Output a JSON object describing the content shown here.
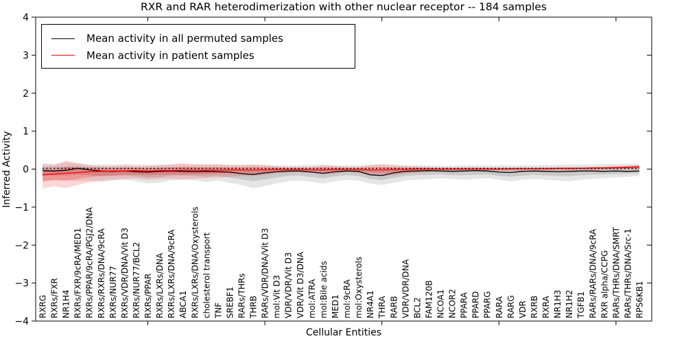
{
  "title": "RXR and RAR heterodimerization with other nuclear receptor -- 184 samples",
  "axes": {
    "ylabel": "Inferred Activity",
    "xlabel": "Cellular Entities"
  },
  "legend": {
    "entries": [
      {
        "label": "Mean activity in all permuted samples",
        "color": "#000000"
      },
      {
        "label": "Mean activity in patient samples",
        "color": "#ff0000"
      }
    ],
    "position": "upper left"
  },
  "colors": {
    "permuted_line": "#000000",
    "patient_line": "#ff0000",
    "baseline_dotted": "#000000",
    "gray_band_outer": "rgba(0,0,0,0.10)",
    "gray_band_inner": "rgba(0,0,0,0.12)",
    "red_band_outer": "rgba(255,0,0,0.16)",
    "red_band_inner": "rgba(255,0,0,0.22)",
    "spine": "#000000"
  },
  "chart_data": {
    "type": "line",
    "title": "RXR and RAR heterodimerization with other nuclear receptor -- 184 samples",
    "xlabel": "Cellular Entities",
    "ylabel": "Inferred Activity",
    "ylim": [
      -4,
      4
    ],
    "yticks": [
      4,
      3,
      2,
      1,
      0,
      -1,
      -2,
      -3,
      -4
    ],
    "ytick_labels": [
      "4",
      "3",
      "2",
      "1",
      "0",
      "−1",
      "−2",
      "−3",
      "−4"
    ],
    "grid": false,
    "legend_position": "upper left",
    "major_xtick_indices": [
      9,
      19,
      29,
      39,
      49
    ],
    "categories": [
      "RXRG",
      "RXRs/FXR",
      "NR1H4",
      "RXRs/FXR/9cRA/MED1",
      "RXRs/PPAR/9cRA/PGJ2/DNA",
      "RXRs/RXRs/DNA/9cRA",
      "RXRs/NUR77",
      "RXRs/VDR/DNA/Vit D3",
      "RXRs/NUR77/BCL2",
      "RXRs/PPAR",
      "RXRs/LXRs/DNA",
      "RXRs/LXRs/DNA/9cRA",
      "ABCA1",
      "RXRs/LXRs/DNA/Oxysterols",
      "cholesterol transport",
      "TNF",
      "SREBF1",
      "RARs/THRs",
      "THRB",
      "RARs/VDR/DNA/Vit D3",
      "mol:Vit D3",
      "VDR/VDR/Vit D3",
      "VDR/Vit D3/DNA",
      "mol:ATRA",
      "mol:Bile acids",
      "MED1",
      "mol:9cRA",
      "mol:Oxysterols",
      "NR4A1",
      "THRA",
      "RARB",
      "VDR/VDR/DNA",
      "BCL2",
      "FAM120B",
      "NCOA1",
      "NCOR2",
      "PPARA",
      "PPARD",
      "PPARG",
      "RARA",
      "RARG",
      "VDR",
      "RXRB",
      "RXRA",
      "NR1H3",
      "NR1H2",
      "TGFB1",
      "RARs/RARs/DNA/9cRA",
      "RXR alpha/CCPG",
      "RARs/THRs/DNA/SMRT",
      "RARs/THRs/DNA/Src-1",
      "RPS6KB1"
    ],
    "series": [
      {
        "name": "Mean activity in all permuted samples",
        "color": "#000000",
        "style": "solid",
        "values": [
          -0.04,
          -0.05,
          -0.03,
          0.02,
          -0.02,
          -0.05,
          -0.06,
          -0.05,
          -0.07,
          -0.08,
          -0.06,
          -0.05,
          -0.06,
          -0.07,
          -0.06,
          -0.07,
          -0.08,
          -0.12,
          -0.14,
          -0.1,
          -0.07,
          -0.05,
          -0.05,
          -0.08,
          -0.11,
          -0.07,
          -0.05,
          -0.06,
          -0.15,
          -0.17,
          -0.1,
          -0.06,
          -0.05,
          -0.04,
          -0.05,
          -0.06,
          -0.05,
          -0.04,
          -0.05,
          -0.08,
          -0.09,
          -0.06,
          -0.05,
          -0.06,
          -0.07,
          -0.06,
          -0.05,
          -0.05,
          -0.06,
          -0.05,
          -0.06,
          -0.05
        ]
      },
      {
        "name": "Mean activity in patient samples",
        "color": "#ff0000",
        "style": "solid",
        "values": [
          -0.15,
          -0.13,
          -0.11,
          -0.09,
          -0.07,
          -0.06,
          -0.05,
          -0.05,
          -0.04,
          -0.05,
          -0.04,
          -0.04,
          -0.03,
          -0.03,
          -0.03,
          -0.03,
          -0.02,
          -0.02,
          -0.02,
          -0.02,
          -0.01,
          -0.01,
          -0.01,
          -0.02,
          -0.02,
          -0.01,
          -0.01,
          -0.01,
          -0.02,
          -0.02,
          -0.01,
          -0.01,
          0.0,
          0.0,
          0.0,
          0.0,
          0.0,
          0.0,
          0.0,
          0.0,
          0.01,
          0.01,
          0.01,
          0.01,
          0.02,
          0.02,
          0.02,
          0.03,
          0.03,
          0.04,
          0.05,
          0.06
        ]
      },
      {
        "name": "baseline (dotted)",
        "color": "#000000",
        "style": "dotted",
        "values": [
          0.02,
          0.02,
          0.02,
          0.02,
          0.02,
          0.02,
          0.02,
          0.02,
          0.02,
          0.02,
          0.02,
          0.02,
          0.02,
          0.02,
          0.02,
          0.02,
          0.02,
          0.02,
          0.02,
          0.02,
          0.02,
          0.02,
          0.02,
          0.02,
          0.02,
          0.02,
          0.02,
          0.02,
          0.02,
          0.02,
          0.02,
          0.02,
          0.02,
          0.02,
          0.02,
          0.02,
          0.02,
          0.02,
          0.02,
          0.02,
          0.02,
          0.02,
          0.02,
          0.02,
          0.02,
          0.02,
          0.02,
          0.02,
          0.02,
          0.02,
          0.02,
          0.02
        ]
      }
    ],
    "bands": [
      {
        "name": "permuted-range-outer",
        "color": "rgba(0,0,0,0.10)",
        "top": [
          0.15,
          0.14,
          0.18,
          0.15,
          0.12,
          0.12,
          0.12,
          0.13,
          0.12,
          0.12,
          0.12,
          0.12,
          0.12,
          0.12,
          0.11,
          0.11,
          0.12,
          0.12,
          0.12,
          0.11,
          0.1,
          0.1,
          0.1,
          0.11,
          0.12,
          0.1,
          0.1,
          0.1,
          0.12,
          0.13,
          0.12,
          0.1,
          0.1,
          0.1,
          0.09,
          0.09,
          0.1,
          0.1,
          0.1,
          0.1,
          0.1,
          0.1,
          0.1,
          0.11,
          0.11,
          0.12,
          0.12,
          0.12,
          0.13,
          0.13,
          0.14,
          0.14
        ],
        "bottom": [
          -0.3,
          -0.28,
          -0.3,
          -0.32,
          -0.3,
          -0.34,
          -0.3,
          -0.28,
          -0.32,
          -0.38,
          -0.36,
          -0.3,
          -0.28,
          -0.3,
          -0.34,
          -0.3,
          -0.36,
          -0.42,
          -0.5,
          -0.45,
          -0.38,
          -0.32,
          -0.3,
          -0.34,
          -0.38,
          -0.32,
          -0.28,
          -0.3,
          -0.38,
          -0.42,
          -0.36,
          -0.3,
          -0.28,
          -0.26,
          -0.24,
          -0.26,
          -0.28,
          -0.26,
          -0.24,
          -0.28,
          -0.32,
          -0.28,
          -0.26,
          -0.28,
          -0.3,
          -0.32,
          -0.28,
          -0.26,
          -0.24,
          -0.22,
          -0.2,
          -0.18
        ]
      },
      {
        "name": "permuted-range-inner",
        "color": "rgba(0,0,0,0.12)",
        "top": [
          0.05,
          0.05,
          0.07,
          0.08,
          0.05,
          0.04,
          0.03,
          0.04,
          0.03,
          0.02,
          0.03,
          0.04,
          0.03,
          0.03,
          0.03,
          0.02,
          0.02,
          0.0,
          -0.01,
          0.01,
          0.02,
          0.03,
          0.03,
          0.02,
          0.01,
          0.02,
          0.03,
          0.02,
          -0.02,
          -0.02,
          0.01,
          0.02,
          0.03,
          0.03,
          0.02,
          0.02,
          0.03,
          0.03,
          0.03,
          0.01,
          0.01,
          0.02,
          0.03,
          0.03,
          0.02,
          0.03,
          0.04,
          0.04,
          0.04,
          0.04,
          0.04,
          0.05
        ],
        "bottom": [
          -0.17,
          -0.16,
          -0.17,
          -0.15,
          -0.16,
          -0.19,
          -0.18,
          -0.17,
          -0.19,
          -0.23,
          -0.21,
          -0.17,
          -0.17,
          -0.18,
          -0.2,
          -0.18,
          -0.22,
          -0.27,
          -0.32,
          -0.27,
          -0.22,
          -0.18,
          -0.17,
          -0.21,
          -0.24,
          -0.19,
          -0.16,
          -0.18,
          -0.26,
          -0.29,
          -0.23,
          -0.18,
          -0.16,
          -0.15,
          -0.14,
          -0.16,
          -0.16,
          -0.15,
          -0.14,
          -0.18,
          -0.2,
          -0.17,
          -0.15,
          -0.17,
          -0.18,
          -0.19,
          -0.16,
          -0.15,
          -0.14,
          -0.13,
          -0.12,
          -0.11
        ]
      },
      {
        "name": "patient-range-outer",
        "color": "rgba(255,0,0,0.16)",
        "top": [
          0.13,
          0.1,
          0.22,
          0.16,
          0.1,
          0.08,
          0.08,
          0.1,
          0.08,
          0.08,
          0.1,
          0.12,
          0.16,
          0.12,
          0.14,
          0.13,
          0.1,
          0.1,
          0.12,
          0.1,
          0.07,
          0.05,
          0.05,
          0.06,
          0.1,
          0.08,
          0.05,
          0.06,
          0.1,
          0.12,
          0.1,
          0.08,
          0.06,
          0.05,
          0.04,
          0.04,
          0.04,
          0.04,
          0.04,
          0.04,
          0.04,
          0.04,
          0.04,
          0.04,
          0.04,
          0.05,
          0.05,
          0.06,
          0.07,
          0.08,
          0.09,
          0.1
        ],
        "bottom": [
          -0.51,
          -0.45,
          -0.5,
          -0.42,
          -0.35,
          -0.3,
          -0.28,
          -0.26,
          -0.25,
          -0.28,
          -0.26,
          -0.25,
          -0.27,
          -0.25,
          -0.24,
          -0.22,
          -0.2,
          -0.18,
          -0.18,
          -0.16,
          -0.12,
          -0.1,
          -0.08,
          -0.1,
          -0.14,
          -0.12,
          -0.08,
          -0.1,
          -0.16,
          -0.18,
          -0.16,
          -0.12,
          -0.1,
          -0.08,
          -0.06,
          -0.05,
          -0.05,
          -0.05,
          -0.05,
          -0.05,
          -0.05,
          -0.04,
          -0.04,
          -0.04,
          -0.04,
          -0.04,
          -0.03,
          -0.03,
          -0.03,
          -0.02,
          -0.02,
          -0.02
        ]
      },
      {
        "name": "patient-range-inner",
        "color": "rgba(255,0,0,0.22)",
        "top": [
          0.0,
          -0.01,
          0.05,
          0.04,
          0.02,
          0.01,
          0.02,
          0.03,
          0.02,
          0.02,
          0.03,
          0.04,
          0.06,
          0.05,
          0.05,
          0.05,
          0.04,
          0.04,
          0.05,
          0.04,
          0.03,
          0.02,
          0.02,
          0.02,
          0.04,
          0.03,
          0.02,
          0.02,
          0.04,
          0.05,
          0.04,
          0.03,
          0.03,
          0.02,
          0.02,
          0.02,
          0.02,
          0.02,
          0.02,
          0.02,
          0.02,
          0.02,
          0.02,
          0.03,
          0.03,
          0.03,
          0.03,
          0.04,
          0.05,
          0.06,
          0.07,
          0.08
        ],
        "bottom": [
          -0.33,
          -0.29,
          -0.3,
          -0.26,
          -0.21,
          -0.18,
          -0.17,
          -0.15,
          -0.15,
          -0.16,
          -0.15,
          -0.14,
          -0.15,
          -0.14,
          -0.13,
          -0.12,
          -0.11,
          -0.1,
          -0.1,
          -0.09,
          -0.07,
          -0.05,
          -0.05,
          -0.06,
          -0.08,
          -0.06,
          -0.05,
          -0.05,
          -0.09,
          -0.1,
          -0.08,
          -0.07,
          -0.05,
          -0.04,
          -0.03,
          -0.03,
          -0.02,
          -0.02,
          -0.02,
          -0.02,
          -0.02,
          -0.02,
          -0.01,
          -0.01,
          -0.01,
          -0.01,
          0.0,
          0.0,
          0.01,
          0.01,
          0.02,
          0.02
        ]
      }
    ]
  }
}
